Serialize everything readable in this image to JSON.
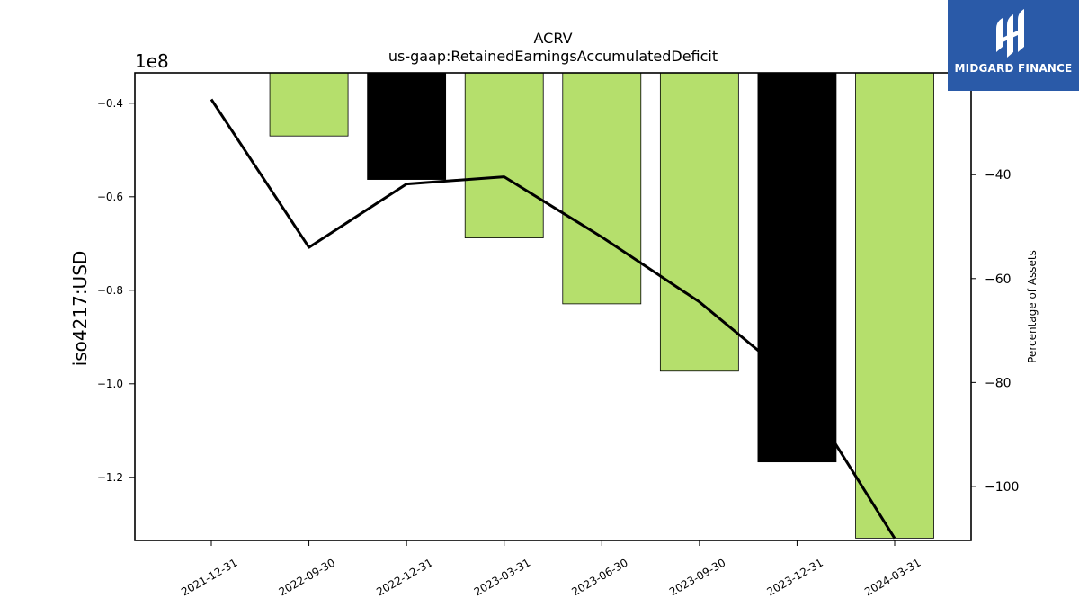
{
  "chart_data": {
    "type": "bar",
    "title": "ACRV",
    "subtitle": "us-gaap:RetainedEarningsAccumulatedDeficit",
    "ylabel": "iso4217:USD",
    "y_multiplier_label": "1e8",
    "y2label": "Percentage of Assets",
    "categories": [
      "2021-12-31",
      "2022-09-30",
      "2022-12-31",
      "2023-03-31",
      "2023-06-30",
      "2023-09-30",
      "2023-12-31",
      "2024-03-31"
    ],
    "series": [
      {
        "type": "bar",
        "axis": "left",
        "values": [
          null,
          -47000000,
          -56300000,
          -68800000,
          -82900000,
          -97300000,
          -116700000,
          -133000000
        ],
        "colors": [
          "#b5df6c",
          "#b5df6c",
          "#000000",
          "#b5df6c",
          "#b5df6c",
          "#b5df6c",
          "#000000",
          "#b5df6c"
        ]
      },
      {
        "type": "line",
        "axis": "right",
        "color": "#000000",
        "values": [
          -25.5,
          -54,
          -41.8,
          -40.4,
          -52,
          -64.5,
          -80,
          -110
        ]
      }
    ],
    "ylim": [
      -0.1335,
      -0.0335
    ],
    "y_ticks": [
      -0.4,
      -0.6,
      -0.8,
      -1.0,
      -1.2
    ],
    "y_tick_labels": [
      "−0.4",
      "−0.6",
      "−0.8",
      "−1.0",
      "−1.2"
    ],
    "y2lim": [
      -110.4,
      -20.4
    ],
    "y2_ticks": [
      -40,
      -60,
      -80,
      -100
    ],
    "y2_tick_labels": [
      "−40",
      "−60",
      "−80",
      "−100"
    ],
    "grid": false,
    "legend": "none"
  },
  "logo": {
    "name": "MIDGARD FINANCE",
    "icon": "midgard-finance-logo-icon"
  }
}
